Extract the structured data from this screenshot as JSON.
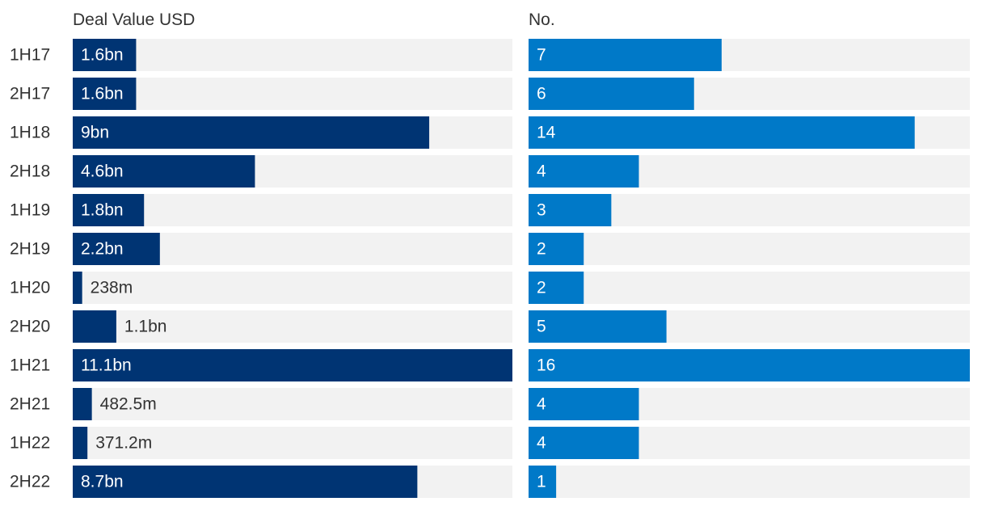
{
  "chart_data": {
    "type": "bar",
    "orientation": "horizontal",
    "categories": [
      "1H17",
      "2H17",
      "1H18",
      "2H18",
      "1H19",
      "2H19",
      "1H20",
      "2H20",
      "1H21",
      "2H21",
      "1H22",
      "2H22"
    ],
    "panels": [
      {
        "title": "Deal Value USD",
        "color": "#003473",
        "track_color": "#f2f2f2",
        "max": 11.1,
        "values": [
          1.6,
          1.6,
          9,
          4.6,
          1.8,
          2.2,
          0.238,
          1.1,
          11.1,
          0.4825,
          0.3712,
          8.7
        ],
        "labels": [
          "1.6bn",
          "1.6bn",
          "9bn",
          "4.6bn",
          "1.8bn",
          "2.2bn",
          "238m",
          "1.1bn",
          "11.1bn",
          "482.5m",
          "371.2m",
          "8.7bn"
        ]
      },
      {
        "title": "No.",
        "color": "#0079c8",
        "track_color": "#f2f2f2",
        "max": 16,
        "values": [
          7,
          6,
          14,
          4,
          3,
          2,
          2,
          5,
          16,
          4,
          4,
          1
        ],
        "labels": [
          "7",
          "6",
          "14",
          "4",
          "3",
          "2",
          "2",
          "5",
          "16",
          "4",
          "4",
          "1"
        ]
      }
    ]
  }
}
